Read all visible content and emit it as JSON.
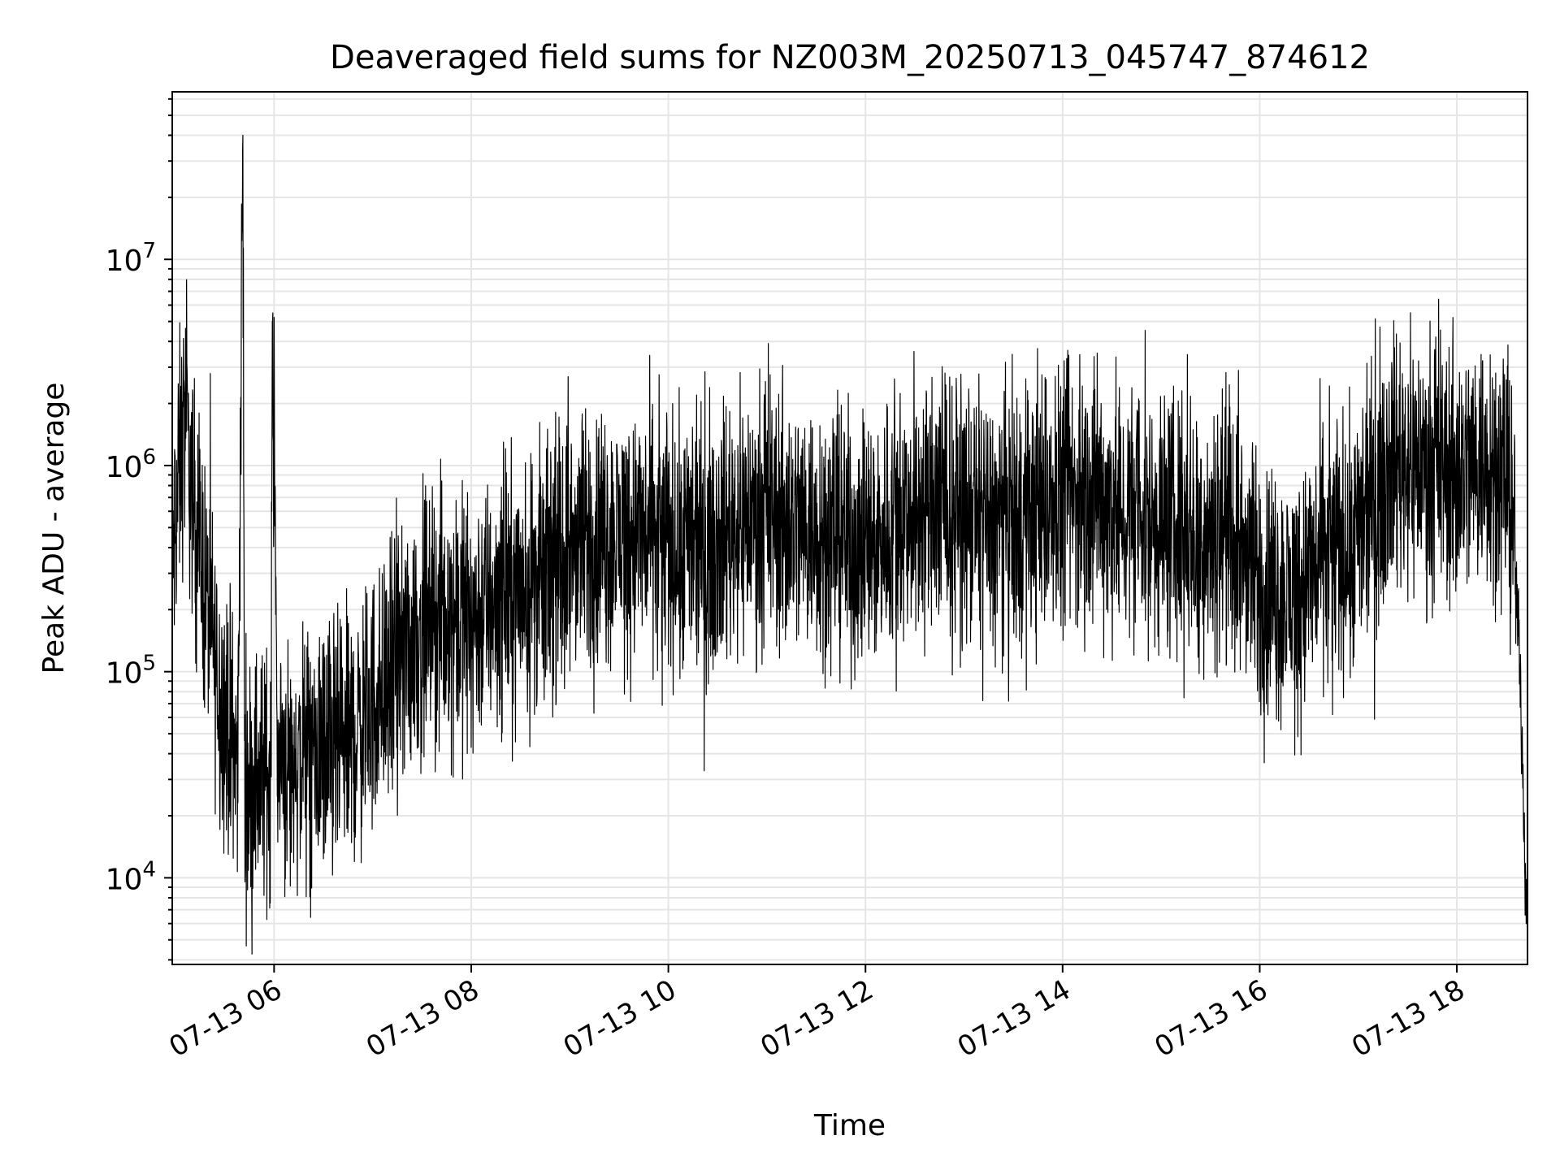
{
  "chart_data": {
    "type": "line",
    "title": "Deaveraged field sums for NZ003M_20250713_045747_874612",
    "xlabel": "Time",
    "ylabel": "Peak ADU - average",
    "yscale": "log",
    "ylim": [
      3800,
      65000000
    ],
    "xlim": [
      "2025-07-13 04:58",
      "2025-07-13 18:43"
    ],
    "grid": true,
    "line_color": "#000000",
    "grid_color": "#e5e5e5",
    "x_ticks": [
      {
        "label": "07-13 06",
        "time": "2025-07-13 06:00"
      },
      {
        "label": "07-13 08",
        "time": "2025-07-13 08:00"
      },
      {
        "label": "07-13 10",
        "time": "2025-07-13 10:00"
      },
      {
        "label": "07-13 12",
        "time": "2025-07-13 12:00"
      },
      {
        "label": "07-13 14",
        "time": "2025-07-13 14:00"
      },
      {
        "label": "07-13 16",
        "time": "2025-07-13 16:00"
      },
      {
        "label": "07-13 18",
        "time": "2025-07-13 18:00"
      }
    ],
    "y_ticks": [
      {
        "value": 10000,
        "base": "10",
        "exp": "4"
      },
      {
        "value": 100000,
        "base": "10",
        "exp": "5"
      },
      {
        "value": 1000000,
        "base": "10",
        "exp": "6"
      },
      {
        "value": 10000000,
        "base": "10",
        "exp": "7"
      }
    ],
    "series": [
      {
        "x": [
          "2025-07-13 04:58",
          "2025-07-13 05:02",
          "2025-07-13 05:06",
          "2025-07-13 05:10",
          "2025-07-13 05:14",
          "2025-07-13 05:18",
          "2025-07-13 05:22",
          "2025-07-13 05:26",
          "2025-07-13 05:30",
          "2025-07-13 05:34",
          "2025-07-13 05:38",
          "2025-07-13 05:41",
          "2025-07-13 05:42",
          "2025-07-13 05:46",
          "2025-07-13 05:50",
          "2025-07-13 05:54",
          "2025-07-13 05:58",
          "2025-07-13 05:59",
          "2025-07-13 06:02",
          "2025-07-13 06:10",
          "2025-07-13 06:20",
          "2025-07-13 06:30",
          "2025-07-13 06:40",
          "2025-07-13 06:50",
          "2025-07-13 07:00",
          "2025-07-13 07:15",
          "2025-07-13 07:30",
          "2025-07-13 07:45",
          "2025-07-13 08:00",
          "2025-07-13 08:20",
          "2025-07-13 08:40",
          "2025-07-13 09:00",
          "2025-07-13 09:20",
          "2025-07-13 09:40",
          "2025-07-13 10:00",
          "2025-07-13 10:20",
          "2025-07-13 10:40",
          "2025-07-13 11:00",
          "2025-07-13 11:20",
          "2025-07-13 11:40",
          "2025-07-13 12:00",
          "2025-07-13 12:20",
          "2025-07-13 12:40",
          "2025-07-13 13:00",
          "2025-07-13 13:20",
          "2025-07-13 13:40",
          "2025-07-13 14:00",
          "2025-07-13 14:20",
          "2025-07-13 14:40",
          "2025-07-13 15:00",
          "2025-07-13 15:20",
          "2025-07-13 15:40",
          "2025-07-13 16:00",
          "2025-07-13 16:20",
          "2025-07-13 16:40",
          "2025-07-13 17:00",
          "2025-07-13 17:10",
          "2025-07-13 17:20",
          "2025-07-13 17:40",
          "2025-07-13 18:00",
          "2025-07-13 18:20",
          "2025-07-13 18:30",
          "2025-07-13 18:35",
          "2025-07-13 18:38",
          "2025-07-13 18:40",
          "2025-07-13 18:42"
        ],
        "y": [
          300000,
          900000,
          1800000,
          700000,
          450000,
          250000,
          150000,
          90000,
          60000,
          45000,
          35000,
          40000000,
          30000,
          28000,
          32000,
          30000,
          35000,
          5000000,
          40000,
          35000,
          38000,
          40000,
          42000,
          50000,
          70000,
          110000,
          160000,
          190000,
          180000,
          240000,
          280000,
          380000,
          450000,
          480000,
          420000,
          380000,
          520000,
          600000,
          520000,
          480000,
          400000,
          550000,
          650000,
          600000,
          500000,
          560000,
          700000,
          720000,
          600000,
          550000,
          480000,
          520000,
          250000,
          230000,
          380000,
          420000,
          700000,
          1100000,
          1000000,
          950000,
          1100000,
          900000,
          450000,
          120000,
          40000,
          8000
        ]
      }
    ]
  }
}
